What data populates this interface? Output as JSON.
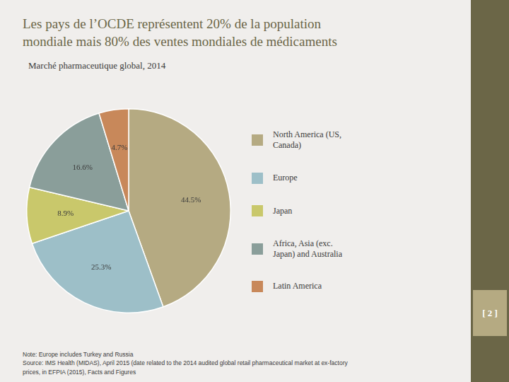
{
  "chart_data": {
    "type": "pie",
    "title": "Les pays de l’OCDE représentent 20% de la population\nmondiale mais 80% des ventes mondiales de médicaments",
    "subtitle": "Marché pharmaceutique global, 2014",
    "categories": [
      "North America (US,\nCanada)",
      "Europe",
      "Japan",
      "Africa, Asia (exc.\nJapan) and Australia",
      "Latin America"
    ],
    "values": [
      44.5,
      25.3,
      8.9,
      16.6,
      4.7
    ],
    "value_labels": [
      "44.5%",
      "25.3%",
      "8.9%",
      "16.6%",
      "4.7%"
    ],
    "colors": [
      "#b5aa82",
      "#9dbfc8",
      "#c9c86b",
      "#8a9e9a",
      "#c8885a"
    ],
    "data_labels": true,
    "legend": "right",
    "notes": [
      "Note: Europe includes Turkey and Russia",
      "Source: IMS Health (MIDAS), April 2015 (date related to the 2014 audited global retail pharmaceutical market at ex-factory",
      "prices, in EFPIA (2015), Facts and Figures"
    ],
    "page_label": "[ 2 ]"
  }
}
